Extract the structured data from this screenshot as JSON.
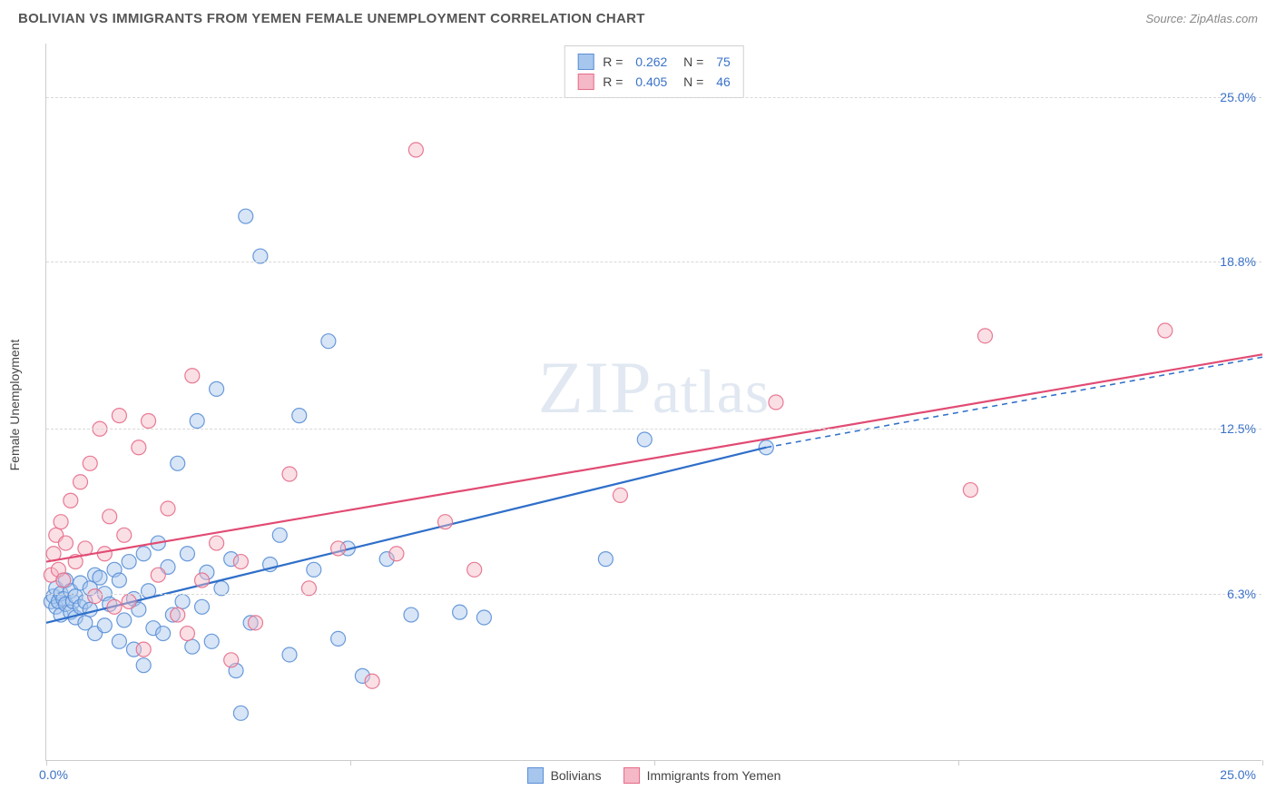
{
  "header": {
    "title": "BOLIVIAN VS IMMIGRANTS FROM YEMEN FEMALE UNEMPLOYMENT CORRELATION CHART",
    "source": "Source: ZipAtlas.com"
  },
  "watermark": "ZIPatlas",
  "chart": {
    "type": "scatter",
    "ylabel": "Female Unemployment",
    "xlim": [
      0,
      25
    ],
    "ylim": [
      0,
      27
    ],
    "yticks": [
      {
        "value": 6.3,
        "label": "6.3%"
      },
      {
        "value": 12.5,
        "label": "12.5%"
      },
      {
        "value": 18.8,
        "label": "18.8%"
      },
      {
        "value": 25.0,
        "label": "25.0%"
      }
    ],
    "xtick_left": "0.0%",
    "xtick_right": "25.0%",
    "xtick_marks": [
      0,
      6.25,
      12.5,
      18.75,
      25
    ],
    "background_color": "#ffffff",
    "grid_color": "#d8d8d8",
    "marker_radius": 8,
    "marker_opacity": 0.45,
    "marker_stroke_opacity": 0.9,
    "series": [
      {
        "name": "Bolivians",
        "color_fill": "#a7c6ed",
        "color_stroke": "#5a8fd6",
        "R": "0.262",
        "N": "75",
        "trend": {
          "x1": 0,
          "y1": 5.2,
          "x2": 14.8,
          "y2": 11.8,
          "ext_x2": 25,
          "ext_y2": 15.2,
          "stroke": "#2f6fc9",
          "stroke_width": 2.2
        },
        "points": [
          [
            0.1,
            6.0
          ],
          [
            0.15,
            6.2
          ],
          [
            0.2,
            5.8
          ],
          [
            0.2,
            6.5
          ],
          [
            0.25,
            6.0
          ],
          [
            0.3,
            5.5
          ],
          [
            0.3,
            6.3
          ],
          [
            0.35,
            6.1
          ],
          [
            0.4,
            5.9
          ],
          [
            0.4,
            6.8
          ],
          [
            0.5,
            5.6
          ],
          [
            0.5,
            6.4
          ],
          [
            0.55,
            6.0
          ],
          [
            0.6,
            6.2
          ],
          [
            0.6,
            5.4
          ],
          [
            0.7,
            6.7
          ],
          [
            0.7,
            5.8
          ],
          [
            0.8,
            6.0
          ],
          [
            0.8,
            5.2
          ],
          [
            0.9,
            6.5
          ],
          [
            0.9,
            5.7
          ],
          [
            1.0,
            7.0
          ],
          [
            1.0,
            4.8
          ],
          [
            1.1,
            6.9
          ],
          [
            1.2,
            5.1
          ],
          [
            1.2,
            6.3
          ],
          [
            1.3,
            5.9
          ],
          [
            1.4,
            7.2
          ],
          [
            1.5,
            4.5
          ],
          [
            1.5,
            6.8
          ],
          [
            1.6,
            5.3
          ],
          [
            1.7,
            7.5
          ],
          [
            1.8,
            4.2
          ],
          [
            1.8,
            6.1
          ],
          [
            1.9,
            5.7
          ],
          [
            2.0,
            7.8
          ],
          [
            2.0,
            3.6
          ],
          [
            2.1,
            6.4
          ],
          [
            2.2,
            5.0
          ],
          [
            2.3,
            8.2
          ],
          [
            2.4,
            4.8
          ],
          [
            2.5,
            7.3
          ],
          [
            2.6,
            5.5
          ],
          [
            2.7,
            11.2
          ],
          [
            2.8,
            6.0
          ],
          [
            2.9,
            7.8
          ],
          [
            3.0,
            4.3
          ],
          [
            3.1,
            12.8
          ],
          [
            3.2,
            5.8
          ],
          [
            3.3,
            7.1
          ],
          [
            3.4,
            4.5
          ],
          [
            3.5,
            14.0
          ],
          [
            3.6,
            6.5
          ],
          [
            3.8,
            7.6
          ],
          [
            3.9,
            3.4
          ],
          [
            4.0,
            1.8
          ],
          [
            4.1,
            20.5
          ],
          [
            4.2,
            5.2
          ],
          [
            4.4,
            19.0
          ],
          [
            4.6,
            7.4
          ],
          [
            4.8,
            8.5
          ],
          [
            5.0,
            4.0
          ],
          [
            5.2,
            13.0
          ],
          [
            5.5,
            7.2
          ],
          [
            5.8,
            15.8
          ],
          [
            6.0,
            4.6
          ],
          [
            6.2,
            8.0
          ],
          [
            6.5,
            3.2
          ],
          [
            7.0,
            7.6
          ],
          [
            7.5,
            5.5
          ],
          [
            8.5,
            5.6
          ],
          [
            9.0,
            5.4
          ],
          [
            11.5,
            7.6
          ],
          [
            12.3,
            12.1
          ],
          [
            14.8,
            11.8
          ]
        ]
      },
      {
        "name": "Immigrants from Yemen",
        "color_fill": "#f4b8c6",
        "color_stroke": "#e56d89",
        "R": "0.405",
        "N": "46",
        "trend": {
          "x1": 0,
          "y1": 7.5,
          "x2": 25,
          "y2": 15.3,
          "stroke": "#e14b73",
          "stroke_width": 2.2
        },
        "points": [
          [
            0.1,
            7.0
          ],
          [
            0.15,
            7.8
          ],
          [
            0.2,
            8.5
          ],
          [
            0.25,
            7.2
          ],
          [
            0.3,
            9.0
          ],
          [
            0.35,
            6.8
          ],
          [
            0.4,
            8.2
          ],
          [
            0.5,
            9.8
          ],
          [
            0.6,
            7.5
          ],
          [
            0.7,
            10.5
          ],
          [
            0.8,
            8.0
          ],
          [
            0.9,
            11.2
          ],
          [
            1.0,
            6.2
          ],
          [
            1.1,
            12.5
          ],
          [
            1.2,
            7.8
          ],
          [
            1.3,
            9.2
          ],
          [
            1.4,
            5.8
          ],
          [
            1.5,
            13.0
          ],
          [
            1.6,
            8.5
          ],
          [
            1.7,
            6.0
          ],
          [
            1.9,
            11.8
          ],
          [
            2.0,
            4.2
          ],
          [
            2.1,
            12.8
          ],
          [
            2.3,
            7.0
          ],
          [
            2.5,
            9.5
          ],
          [
            2.7,
            5.5
          ],
          [
            2.9,
            4.8
          ],
          [
            3.0,
            14.5
          ],
          [
            3.2,
            6.8
          ],
          [
            3.5,
            8.2
          ],
          [
            3.8,
            3.8
          ],
          [
            4.0,
            7.5
          ],
          [
            4.3,
            5.2
          ],
          [
            5.0,
            10.8
          ],
          [
            5.4,
            6.5
          ],
          [
            6.0,
            8.0
          ],
          [
            6.7,
            3.0
          ],
          [
            7.2,
            7.8
          ],
          [
            7.6,
            23.0
          ],
          [
            8.2,
            9.0
          ],
          [
            8.8,
            7.2
          ],
          [
            11.8,
            10.0
          ],
          [
            15.0,
            13.5
          ],
          [
            19.0,
            10.2
          ],
          [
            19.3,
            16.0
          ],
          [
            23.0,
            16.2
          ]
        ]
      }
    ],
    "legend_bottom": [
      {
        "label": "Bolivians",
        "fill": "#a7c6ed",
        "stroke": "#5a8fd6"
      },
      {
        "label": "Immigrants from Yemen",
        "fill": "#f4b8c6",
        "stroke": "#e56d89"
      }
    ]
  }
}
